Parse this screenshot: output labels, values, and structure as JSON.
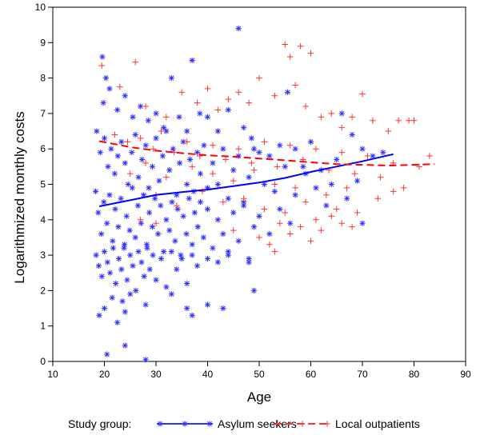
{
  "chart_data": {
    "type": "scatter",
    "xlabel": "Age",
    "ylabel": "Logarithmized monthly costs",
    "xlim": [
      10,
      90
    ],
    "ylim": [
      0,
      10
    ],
    "xticks": [
      "10",
      "20",
      "30",
      "40",
      "50",
      "60",
      "70",
      "80",
      "90"
    ],
    "yticks": [
      "0",
      "1",
      "2",
      "3",
      "4",
      "5",
      "6",
      "7",
      "8",
      "9",
      "10"
    ],
    "grid": false,
    "legend_title": "Study group:",
    "legend_position": "bottom",
    "series": [
      {
        "name": "Asylum seekers",
        "color": "#3333ff",
        "marker": "asterisk",
        "points": [
          [
            19.6,
            8.6
          ],
          [
            20.3,
            8.0
          ],
          [
            21.0,
            7.7
          ],
          [
            19.8,
            7.3
          ],
          [
            22.5,
            7.1
          ],
          [
            24.0,
            7.5
          ],
          [
            25.5,
            6.9
          ],
          [
            27.0,
            7.2
          ],
          [
            28.5,
            6.8
          ],
          [
            30.0,
            7.0
          ],
          [
            31.5,
            6.6
          ],
          [
            33.0,
            8.0
          ],
          [
            34.5,
            6.9
          ],
          [
            36.0,
            6.5
          ],
          [
            37.0,
            8.5
          ],
          [
            38.5,
            7.0
          ],
          [
            40.0,
            6.9
          ],
          [
            42.0,
            6.5
          ],
          [
            44.0,
            7.1
          ],
          [
            46.0,
            9.4
          ],
          [
            47.0,
            6.6
          ],
          [
            48.5,
            6.3
          ],
          [
            50.0,
            5.9
          ],
          [
            52.0,
            5.8
          ],
          [
            54.0,
            6.1
          ],
          [
            55.5,
            7.6
          ],
          [
            57.0,
            6.0
          ],
          [
            58.5,
            5.5
          ],
          [
            60.0,
            6.2
          ],
          [
            62.0,
            5.4
          ],
          [
            64.0,
            5.0
          ],
          [
            66.0,
            7.0
          ],
          [
            68.0,
            6.4
          ],
          [
            70.0,
            6.0
          ],
          [
            72.0,
            5.8
          ],
          [
            74.0,
            5.9
          ],
          [
            18.5,
            6.5
          ],
          [
            19.2,
            5.9
          ],
          [
            20.0,
            6.3
          ],
          [
            20.7,
            5.5
          ],
          [
            21.3,
            6.0
          ],
          [
            22.0,
            5.3
          ],
          [
            22.6,
            5.8
          ],
          [
            23.3,
            6.2
          ],
          [
            24.0,
            5.6
          ],
          [
            24.6,
            5.0
          ],
          [
            25.3,
            5.9
          ],
          [
            26.0,
            6.4
          ],
          [
            26.6,
            5.2
          ],
          [
            27.3,
            5.7
          ],
          [
            28.0,
            6.1
          ],
          [
            28.6,
            4.9
          ],
          [
            29.3,
            5.5
          ],
          [
            30.0,
            6.3
          ],
          [
            30.6,
            5.1
          ],
          [
            31.3,
            5.8
          ],
          [
            32.0,
            6.5
          ],
          [
            32.6,
            5.4
          ],
          [
            33.3,
            6.0
          ],
          [
            34.0,
            4.7
          ],
          [
            34.6,
            5.6
          ],
          [
            35.3,
            6.2
          ],
          [
            36.0,
            5.0
          ],
          [
            36.6,
            5.7
          ],
          [
            37.3,
            4.8
          ],
          [
            38.0,
            5.9
          ],
          [
            38.6,
            5.3
          ],
          [
            39.3,
            6.1
          ],
          [
            40.0,
            4.9
          ],
          [
            41.0,
            5.6
          ],
          [
            42.0,
            5.0
          ],
          [
            43.0,
            6.0
          ],
          [
            44.0,
            4.6
          ],
          [
            45.0,
            5.4
          ],
          [
            46.0,
            5.8
          ],
          [
            47.0,
            4.5
          ],
          [
            48.0,
            5.2
          ],
          [
            49.0,
            6.0
          ],
          [
            51.0,
            5.0
          ],
          [
            53.0,
            4.8
          ],
          [
            55.0,
            5.5
          ],
          [
            57.0,
            4.7
          ],
          [
            59.0,
            5.3
          ],
          [
            61.0,
            4.9
          ],
          [
            63.0,
            4.4
          ],
          [
            65.0,
            5.7
          ],
          [
            67.0,
            4.6
          ],
          [
            69.0,
            5.1
          ],
          [
            70.0,
            3.9
          ],
          [
            18.3,
            4.8
          ],
          [
            18.8,
            4.2
          ],
          [
            19.4,
            3.6
          ],
          [
            19.9,
            4.5
          ],
          [
            20.5,
            3.9
          ],
          [
            21.0,
            4.7
          ],
          [
            21.6,
            3.4
          ],
          [
            22.1,
            4.3
          ],
          [
            22.7,
            3.8
          ],
          [
            23.2,
            4.6
          ],
          [
            23.8,
            3.2
          ],
          [
            24.3,
            4.1
          ],
          [
            24.9,
            3.7
          ],
          [
            25.4,
            4.9
          ],
          [
            26.0,
            3.5
          ],
          [
            26.5,
            4.4
          ],
          [
            27.1,
            3.9
          ],
          [
            27.6,
            4.7
          ],
          [
            28.2,
            3.3
          ],
          [
            28.7,
            4.2
          ],
          [
            29.3,
            3.8
          ],
          [
            29.8,
            4.6
          ],
          [
            30.4,
            3.6
          ],
          [
            30.9,
            4.4
          ],
          [
            31.5,
            3.1
          ],
          [
            32.0,
            4.0
          ],
          [
            32.6,
            3.7
          ],
          [
            33.1,
            4.5
          ],
          [
            33.7,
            3.4
          ],
          [
            34.2,
            4.3
          ],
          [
            34.8,
            3.0
          ],
          [
            35.3,
            4.1
          ],
          [
            35.9,
            3.6
          ],
          [
            36.4,
            4.6
          ],
          [
            37.0,
            3.3
          ],
          [
            37.5,
            4.2
          ],
          [
            38.1,
            3.8
          ],
          [
            38.6,
            4.5
          ],
          [
            39.2,
            3.5
          ],
          [
            40.0,
            4.3
          ],
          [
            41.0,
            3.2
          ],
          [
            42.0,
            4.0
          ],
          [
            43.0,
            3.6
          ],
          [
            44.0,
            3.0
          ],
          [
            45.0,
            4.2
          ],
          [
            46.0,
            3.4
          ],
          [
            47.0,
            4.4
          ],
          [
            48.0,
            2.9
          ],
          [
            49.0,
            3.8
          ],
          [
            50.0,
            4.1
          ],
          [
            52.0,
            3.6
          ],
          [
            54.0,
            4.3
          ],
          [
            56.0,
            3.9
          ],
          [
            18.4,
            3.0
          ],
          [
            18.9,
            2.7
          ],
          [
            19.5,
            2.4
          ],
          [
            20.0,
            3.1
          ],
          [
            20.6,
            2.8
          ],
          [
            21.1,
            2.5
          ],
          [
            21.7,
            3.2
          ],
          [
            22.2,
            2.2
          ],
          [
            22.8,
            2.9
          ],
          [
            23.3,
            2.6
          ],
          [
            23.9,
            3.3
          ],
          [
            24.4,
            2.3
          ],
          [
            25.0,
            3.0
          ],
          [
            25.5,
            2.7
          ],
          [
            26.1,
            2.0
          ],
          [
            26.6,
            3.1
          ],
          [
            27.2,
            2.8
          ],
          [
            27.7,
            2.4
          ],
          [
            28.3,
            3.2
          ],
          [
            28.8,
            2.6
          ],
          [
            29.4,
            3.0
          ],
          [
            30.0,
            2.3
          ],
          [
            31.0,
            2.9
          ],
          [
            32.0,
            2.1
          ],
          [
            33.0,
            3.1
          ],
          [
            34.0,
            2.6
          ],
          [
            35.0,
            2.9
          ],
          [
            36.0,
            2.2
          ],
          [
            37.0,
            3.0
          ],
          [
            38.0,
            2.7
          ],
          [
            40.0,
            2.9
          ],
          [
            42.0,
            2.8
          ],
          [
            44.0,
            3.1
          ],
          [
            48.0,
            2.8
          ],
          [
            19.0,
            1.3
          ],
          [
            20.0,
            1.5
          ],
          [
            21.5,
            1.8
          ],
          [
            22.5,
            1.1
          ],
          [
            23.5,
            1.7
          ],
          [
            24.0,
            1.4
          ],
          [
            25.0,
            1.9
          ],
          [
            28.0,
            1.6
          ],
          [
            33.0,
            1.9
          ],
          [
            36.0,
            1.5
          ],
          [
            37.0,
            1.3
          ],
          [
            40.0,
            1.6
          ],
          [
            43.0,
            1.5
          ],
          [
            49.0,
            2.0
          ],
          [
            20.5,
            0.2
          ],
          [
            24.0,
            0.45
          ],
          [
            28.0,
            0.05
          ]
        ]
      },
      {
        "name": "Local outpatients",
        "color": "#ff3333",
        "marker": "plus",
        "points": [
          [
            19.5,
            8.35
          ],
          [
            26.0,
            8.45
          ],
          [
            23.0,
            7.75
          ],
          [
            28.0,
            7.2
          ],
          [
            32.0,
            6.9
          ],
          [
            35.0,
            7.6
          ],
          [
            38.0,
            7.3
          ],
          [
            40.0,
            7.7
          ],
          [
            42.0,
            7.1
          ],
          [
            44.0,
            7.4
          ],
          [
            46.0,
            7.6
          ],
          [
            48.0,
            7.3
          ],
          [
            50.0,
            8.0
          ],
          [
            53.0,
            7.5
          ],
          [
            55.0,
            8.95
          ],
          [
            56.0,
            8.6
          ],
          [
            58.0,
            8.9
          ],
          [
            60.0,
            8.7
          ],
          [
            57.0,
            7.8
          ],
          [
            59.0,
            7.2
          ],
          [
            62.0,
            6.9
          ],
          [
            64.0,
            7.0
          ],
          [
            66.0,
            6.6
          ],
          [
            68.0,
            6.9
          ],
          [
            70.0,
            7.55
          ],
          [
            72.0,
            6.8
          ],
          [
            75.0,
            6.5
          ],
          [
            77.0,
            6.8
          ],
          [
            79.0,
            6.8
          ],
          [
            80.0,
            6.8
          ],
          [
            22.0,
            6.4
          ],
          [
            24.5,
            6.2
          ],
          [
            27.0,
            6.3
          ],
          [
            29.5,
            6.0
          ],
          [
            31.0,
            6.5
          ],
          [
            33.5,
            5.9
          ],
          [
            36.0,
            6.2
          ],
          [
            38.5,
            5.8
          ],
          [
            41.0,
            6.1
          ],
          [
            43.5,
            5.7
          ],
          [
            46.0,
            6.0
          ],
          [
            48.5,
            5.6
          ],
          [
            51.0,
            6.2
          ],
          [
            53.5,
            5.5
          ],
          [
            56.0,
            6.1
          ],
          [
            58.5,
            5.7
          ],
          [
            61.0,
            6.0
          ],
          [
            63.5,
            5.4
          ],
          [
            66.0,
            5.9
          ],
          [
            68.5,
            5.3
          ],
          [
            71.0,
            5.8
          ],
          [
            73.5,
            5.2
          ],
          [
            76.0,
            5.6
          ],
          [
            78.0,
            4.9
          ],
          [
            81.0,
            5.5
          ],
          [
            83.0,
            5.8
          ],
          [
            25.0,
            5.3
          ],
          [
            28.0,
            5.6
          ],
          [
            30.0,
            4.7
          ],
          [
            32.0,
            5.2
          ],
          [
            34.0,
            4.4
          ],
          [
            37.0,
            5.5
          ],
          [
            39.0,
            4.8
          ],
          [
            41.0,
            5.3
          ],
          [
            43.0,
            4.5
          ],
          [
            45.0,
            5.1
          ],
          [
            47.0,
            4.6
          ],
          [
            49.0,
            5.4
          ],
          [
            51.0,
            4.3
          ],
          [
            53.0,
            5.0
          ],
          [
            55.0,
            4.2
          ],
          [
            57.0,
            4.9
          ],
          [
            59.0,
            4.5
          ],
          [
            61.0,
            4.0
          ],
          [
            63.0,
            4.7
          ],
          [
            65.0,
            4.3
          ],
          [
            67.0,
            4.9
          ],
          [
            69.0,
            4.2
          ],
          [
            73.0,
            4.6
          ],
          [
            76.0,
            4.8
          ],
          [
            27.0,
            4.0
          ],
          [
            30.0,
            3.9
          ],
          [
            45.0,
            3.7
          ],
          [
            50.0,
            3.5
          ],
          [
            52.0,
            3.3
          ],
          [
            54.0,
            3.9
          ],
          [
            56.0,
            3.6
          ],
          [
            58.0,
            3.8
          ],
          [
            60.0,
            3.4
          ],
          [
            62.0,
            3.7
          ],
          [
            64.0,
            4.1
          ],
          [
            66.0,
            3.9
          ],
          [
            68.0,
            3.8
          ],
          [
            53.0,
            3.1
          ]
        ]
      }
    ],
    "trend_lines": [
      {
        "series": "Asylum seekers",
        "color": "#0000ff",
        "style": "solid",
        "points": [
          [
            19,
            4.38
          ],
          [
            25,
            4.55
          ],
          [
            30,
            4.7
          ],
          [
            35,
            4.78
          ],
          [
            40,
            4.85
          ],
          [
            45,
            4.95
          ],
          [
            50,
            5.05
          ],
          [
            55,
            5.18
          ],
          [
            60,
            5.35
          ],
          [
            65,
            5.5
          ],
          [
            70,
            5.65
          ],
          [
            76,
            5.85
          ]
        ]
      },
      {
        "series": "Local outpatients",
        "color": "#ff0000",
        "style": "dashed",
        "points": [
          [
            19,
            6.22
          ],
          [
            25,
            6.05
          ],
          [
            30,
            5.95
          ],
          [
            35,
            5.88
          ],
          [
            40,
            5.82
          ],
          [
            45,
            5.78
          ],
          [
            50,
            5.73
          ],
          [
            55,
            5.68
          ],
          [
            60,
            5.62
          ],
          [
            65,
            5.57
          ],
          [
            70,
            5.55
          ],
          [
            75,
            5.53
          ],
          [
            80,
            5.55
          ],
          [
            84,
            5.57
          ]
        ]
      }
    ]
  }
}
